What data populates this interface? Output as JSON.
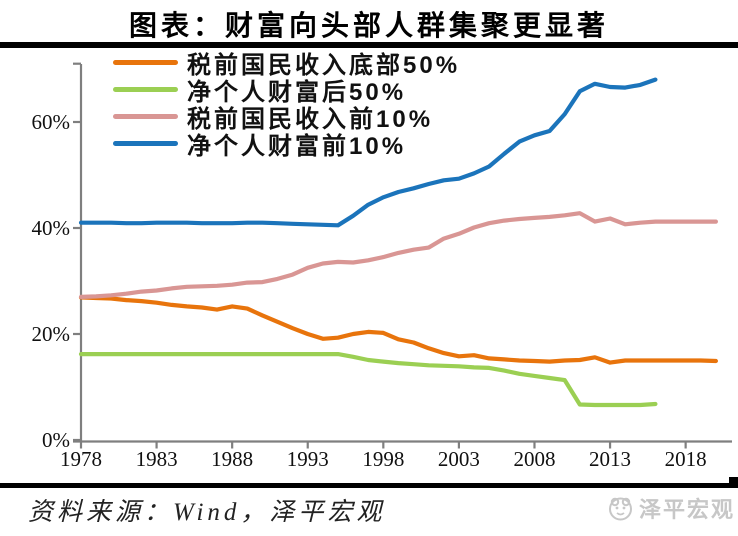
{
  "title": "图表：财富向头部人群集聚更显著",
  "footer": {
    "source": "资料来源：Wind，泽平宏观"
  },
  "watermark": {
    "label": "泽平宏观",
    "icon": "zeping-logo-icon"
  },
  "colors": {
    "axis": "#7F7F7F",
    "text": "#111111",
    "divider": "#000000",
    "watermark": "#c7c7c7"
  },
  "chart_data": {
    "type": "line",
    "title": "图表：财富向头部人群集聚更显著",
    "xlabel": "",
    "ylabel": "",
    "grid": false,
    "legend_position": "top-left",
    "x_ticks": [
      1978,
      1983,
      1988,
      1993,
      1998,
      2003,
      2008,
      2013,
      2018
    ],
    "x_range": [
      1978,
      2021.5
    ],
    "y_tick_labels": [
      "0%",
      "20%",
      "40%",
      "60%"
    ],
    "y_tick_values": [
      0,
      20,
      40,
      60
    ],
    "y_range": [
      0,
      71
    ],
    "series": [
      {
        "name": "税前国民收入底部50%",
        "color": "#E8740C",
        "start_year": 1978,
        "values": [
          26.9,
          26.8,
          26.7,
          26.4,
          26.2,
          25.9,
          25.5,
          25.2,
          25.0,
          24.6,
          25.2,
          24.8,
          23.5,
          22.3,
          21.1,
          20.0,
          19.1,
          19.3,
          20.0,
          20.4,
          20.2,
          19.0,
          18.4,
          17.3,
          16.4,
          15.8,
          16.0,
          15.4,
          15.2,
          15.0,
          14.9,
          14.8,
          15.0,
          15.1,
          15.6,
          14.6,
          15.0,
          15.0,
          15.0,
          15.0,
          15.0,
          15.0,
          14.9
        ]
      },
      {
        "name": "净个人财富后50%",
        "color": "#9BCF53",
        "start_year": 1978,
        "values": [
          16.2,
          16.2,
          16.2,
          16.2,
          16.2,
          16.2,
          16.2,
          16.2,
          16.2,
          16.2,
          16.2,
          16.2,
          16.2,
          16.2,
          16.2,
          16.2,
          16.2,
          16.2,
          15.7,
          15.1,
          14.8,
          14.5,
          14.3,
          14.1,
          14.0,
          13.9,
          13.7,
          13.6,
          13.1,
          12.5,
          12.1,
          11.7,
          11.3,
          6.7,
          6.6,
          6.6,
          6.6,
          6.6,
          6.8
        ]
      },
      {
        "name": "税前国民收入前10%",
        "color": "#D99694",
        "start_year": 1978,
        "values": [
          27.0,
          27.1,
          27.3,
          27.6,
          28.0,
          28.2,
          28.6,
          28.9,
          29.0,
          29.1,
          29.3,
          29.7,
          29.8,
          30.4,
          31.2,
          32.5,
          33.3,
          33.6,
          33.5,
          33.9,
          34.5,
          35.3,
          35.9,
          36.3,
          38.0,
          38.9,
          40.1,
          40.9,
          41.4,
          41.7,
          41.9,
          42.1,
          42.4,
          42.8,
          41.2,
          41.8,
          40.7,
          41.0,
          41.2,
          41.2,
          41.2,
          41.2,
          41.2
        ]
      },
      {
        "name": "净个人财富前10%",
        "color": "#1B74BB",
        "start_year": 1978,
        "values": [
          41.0,
          41.0,
          41.0,
          40.9,
          40.9,
          41.0,
          41.0,
          41.0,
          40.9,
          40.9,
          40.9,
          41.0,
          41.0,
          40.9,
          40.8,
          40.7,
          40.6,
          40.5,
          42.3,
          44.4,
          45.8,
          46.8,
          47.5,
          48.3,
          49.0,
          49.3,
          50.3,
          51.6,
          54.0,
          56.3,
          57.5,
          58.3,
          61.5,
          65.8,
          67.2,
          66.6,
          66.5,
          67.0,
          68.0
        ]
      }
    ]
  }
}
